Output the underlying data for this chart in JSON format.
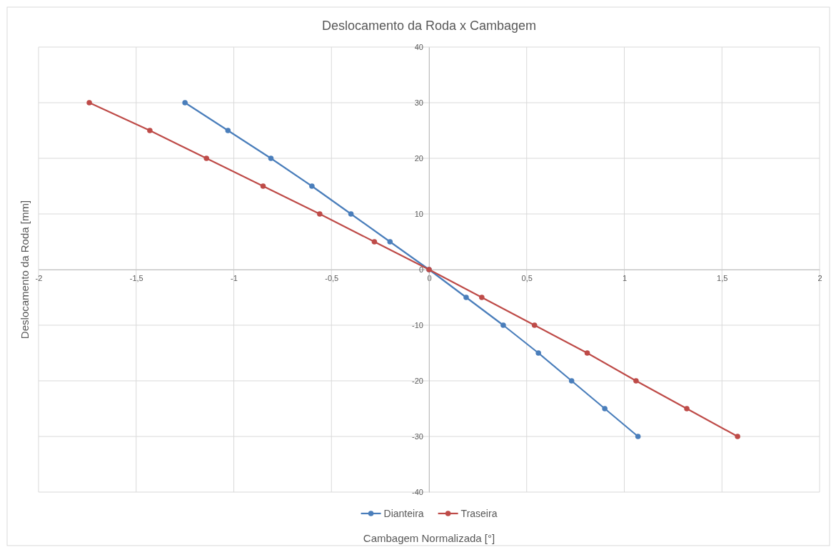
{
  "chart_data": {
    "type": "line",
    "title": "Deslocamento da Roda x Cambagem",
    "xlabel": "Cambagem Normalizada [°]",
    "ylabel": "Deslocamento da Roda [mm]",
    "xlim": [
      -2,
      2
    ],
    "xticks": [
      -2,
      {
        "value": -1.5,
        "label": "-1,5"
      },
      -1,
      {
        "value": -0.5,
        "label": "-0,5"
      },
      0,
      {
        "value": 0.5,
        "label": "0,5"
      },
      1,
      {
        "value": 1.5,
        "label": "1,5"
      },
      2
    ],
    "ylim": [
      -40,
      40
    ],
    "yticks": [
      -40,
      -30,
      -20,
      -10,
      0,
      10,
      20,
      30,
      40
    ],
    "grid": true,
    "legend": "bottom",
    "marker": "circle",
    "line_style": "solid",
    "series": [
      {
        "name": "Dianteira",
        "color": "#4a7ebb",
        "x": [
          -1.25,
          -1.03,
          -0.81,
          -0.6,
          -0.4,
          -0.2,
          0,
          0.19,
          0.38,
          0.56,
          0.73,
          0.9,
          1.07
        ],
        "values": [
          30,
          25,
          20,
          15,
          10,
          5,
          0,
          -5,
          -10,
          -15,
          -20,
          -25,
          -30
        ]
      },
      {
        "name": "Traseira",
        "color": "#be4b48",
        "x": [
          -1.74,
          -1.43,
          -1.14,
          -0.85,
          -0.56,
          -0.28,
          0,
          0.27,
          0.54,
          0.81,
          1.06,
          1.32,
          1.58
        ],
        "values": [
          30,
          25,
          20,
          15,
          10,
          5,
          0,
          -5,
          -10,
          -15,
          -20,
          -25,
          -30
        ]
      }
    ]
  }
}
